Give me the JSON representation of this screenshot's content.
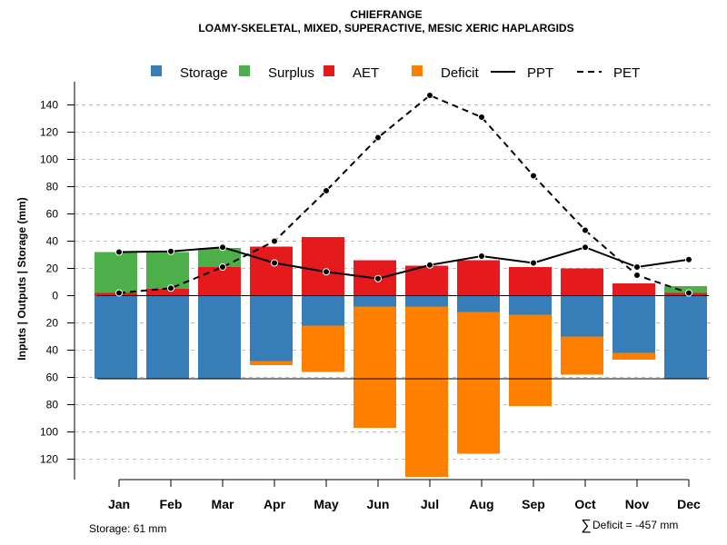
{
  "chart_data": {
    "type": "bar",
    "title": "CHIEFRANGE",
    "subtitle": "LOAMY-SKELETAL, MIXED, SUPERACTIVE, MESIC XERIC HAPLARGIDS",
    "ylabel": "Inputs | Outputs | Storage    (mm)",
    "ylim": [
      -135,
      150
    ],
    "y_ticks": [
      140,
      120,
      100,
      80,
      60,
      40,
      20,
      0,
      -20,
      -40,
      -60,
      -80,
      -100,
      -120
    ],
    "y_tick_labels": [
      "140",
      "120",
      "100",
      "80",
      "60",
      "40",
      "20",
      "0",
      "20",
      "40",
      "60",
      "80",
      "100",
      "120"
    ],
    "categories": [
      "Jan",
      "Feb",
      "Mar",
      "Apr",
      "May",
      "Jun",
      "Jul",
      "Aug",
      "Sep",
      "Oct",
      "Nov",
      "Dec"
    ],
    "legend": [
      {
        "label": "Storage",
        "kind": "box",
        "color": "#377eb8"
      },
      {
        "label": "Surplus",
        "kind": "box",
        "color": "#4daf4a"
      },
      {
        "label": "AET",
        "kind": "box",
        "color": "#e41a1c"
      },
      {
        "label": "Deficit",
        "kind": "box",
        "color": "#ff7f00"
      },
      {
        "label": "PPT",
        "kind": "solid",
        "color": "#000000"
      },
      {
        "label": "PET",
        "kind": "dashed",
        "color": "#000000"
      }
    ],
    "series": [
      {
        "name": "AET",
        "values": [
          2,
          5,
          21,
          36,
          43,
          26,
          22,
          26,
          21,
          20,
          9,
          2
        ]
      },
      {
        "name": "Surplus",
        "values": [
          30,
          27,
          14,
          0,
          0,
          0,
          0,
          0,
          0,
          0,
          0,
          5
        ]
      },
      {
        "name": "Storage",
        "values": [
          61,
          61,
          61,
          48,
          22,
          8,
          8,
          12,
          14,
          30,
          42,
          61
        ]
      },
      {
        "name": "Deficit",
        "values": [
          0,
          0,
          0,
          3,
          34,
          89,
          125,
          104,
          67,
          28,
          5,
          0
        ]
      },
      {
        "name": "PPT",
        "values": [
          32,
          32.5,
          35.5,
          24,
          17.5,
          12.5,
          22.5,
          29,
          24,
          35.5,
          21,
          26.5
        ]
      },
      {
        "name": "PET",
        "values": [
          2,
          5.5,
          21,
          40,
          77,
          116,
          147,
          131,
          88,
          48,
          15,
          2
        ]
      }
    ],
    "storage_capacity": 61,
    "colors": {
      "storage": "#377eb8",
      "surplus": "#4daf4a",
      "aet": "#e41a1c",
      "deficit": "#ff7f00",
      "grid": "#bebebe"
    }
  },
  "footer": {
    "storage_label": "Storage: 61 mm",
    "deficit_symbol": "∑",
    "deficit_label": "Deficit = -457 mm"
  }
}
